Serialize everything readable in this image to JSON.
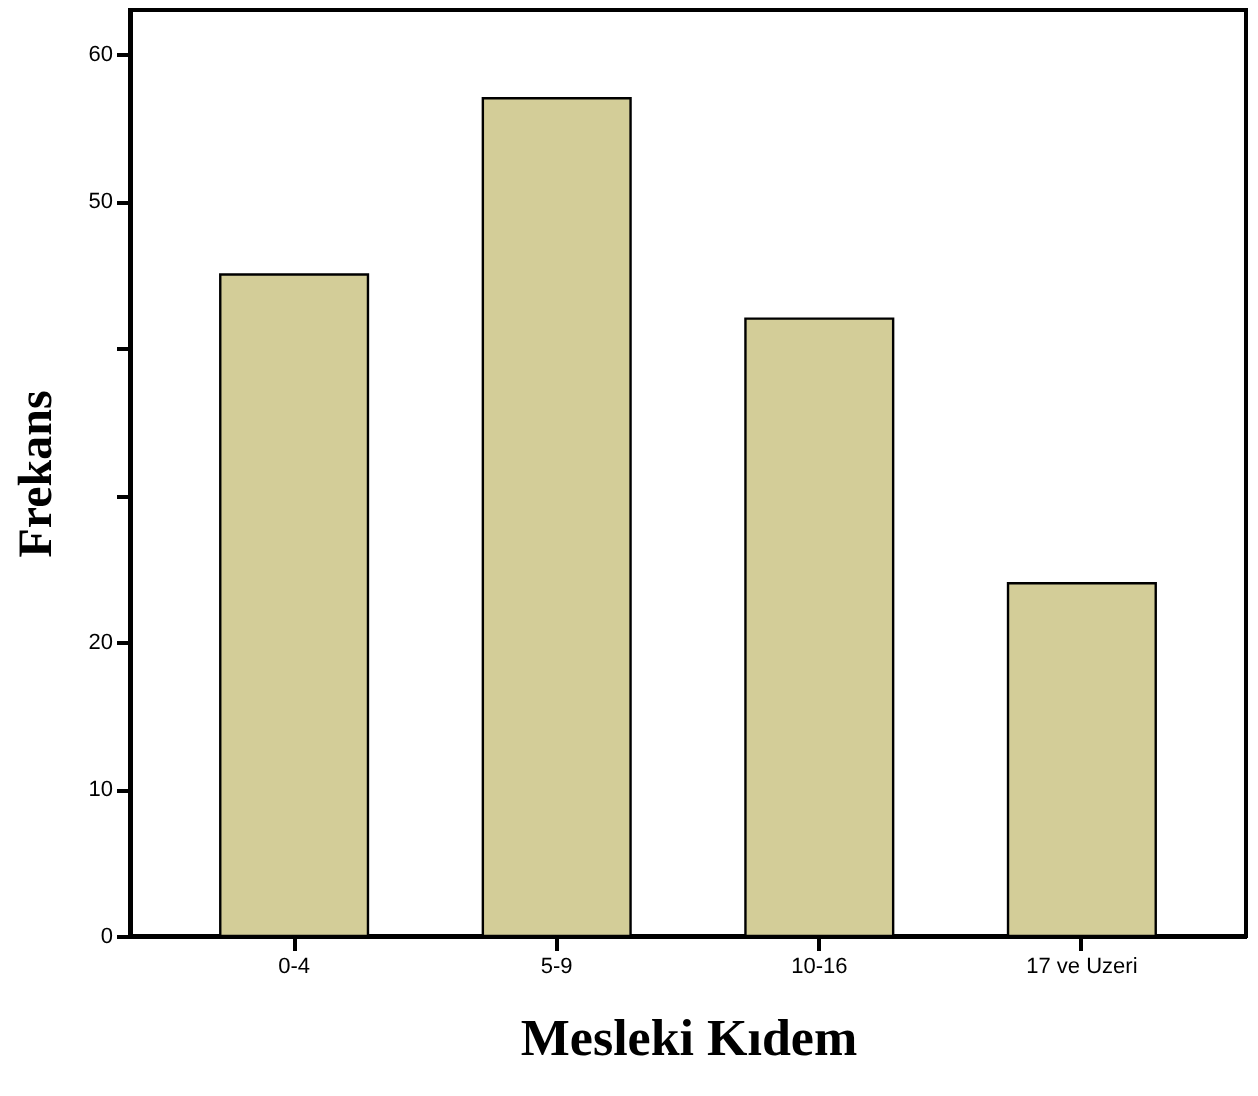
{
  "chart_data": {
    "type": "bar",
    "xlabel": "Mesleki Kıdem",
    "ylabel": "Frekans",
    "categories": [
      "0-4",
      "5-9",
      "10-16",
      "17 ve Uzeri"
    ],
    "values": [
      45,
      57,
      42,
      24
    ],
    "color": "#d3cd98",
    "ylim": [
      0,
      63
    ],
    "yticks": [
      0,
      10,
      20,
      {
        "value": 30,
        "label": null
      },
      {
        "value": 40,
        "label": null
      },
      50,
      60
    ],
    "grid": false
  }
}
